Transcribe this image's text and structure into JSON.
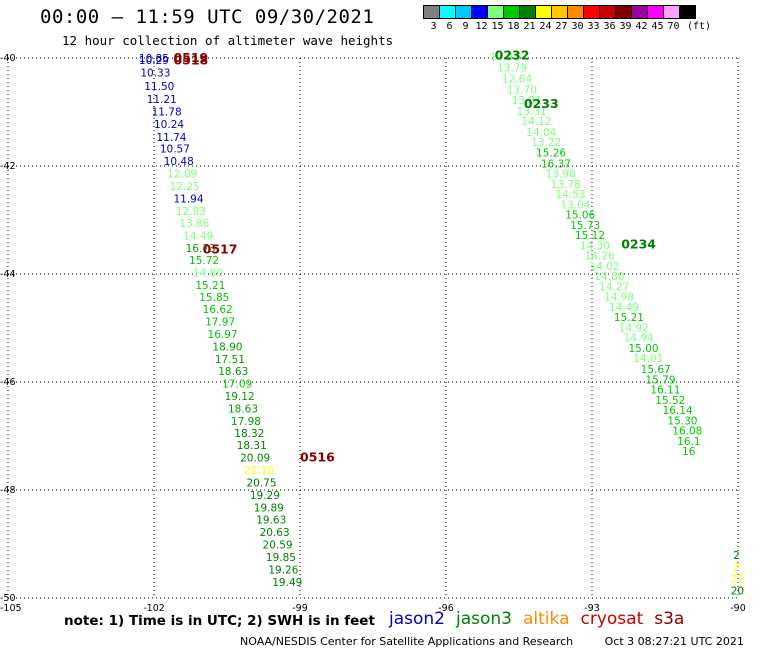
{
  "title": "00:00 – 11:59 UTC 09/30/2021",
  "subtitle": "12 hour collection of altimeter wave heights",
  "legend": {
    "unit": "(ft)",
    "bins": [
      {
        "label": "3",
        "color": "#808080"
      },
      {
        "label": "6",
        "color": "#00ffff"
      },
      {
        "label": "9",
        "color": "#00c8ff"
      },
      {
        "label": "12",
        "color": "#0000ff"
      },
      {
        "label": "15",
        "color": "#7cff7c"
      },
      {
        "label": "18",
        "color": "#00c800"
      },
      {
        "label": "21",
        "color": "#008000"
      },
      {
        "label": "24",
        "color": "#ffff00"
      },
      {
        "label": "27",
        "color": "#ffc800"
      },
      {
        "label": "30",
        "color": "#ff8c00"
      },
      {
        "label": "33",
        "color": "#ff0000"
      },
      {
        "label": "36",
        "color": "#c80000"
      },
      {
        "label": "39",
        "color": "#800000"
      },
      {
        "label": "42",
        "color": "#a000a0"
      },
      {
        "label": "45",
        "color": "#ff00ff"
      },
      {
        "label": "70",
        "color": "#ffa0ff"
      },
      {
        "label": "",
        "color": "#000000"
      }
    ]
  },
  "axes": {
    "lon_ticks": [
      "-105",
      "-102",
      "-99",
      "-96",
      "-93",
      "-90"
    ],
    "lat_ticks": [
      "-40",
      "-42",
      "-44",
      "-46",
      "-48",
      "-50"
    ],
    "lon_range": [
      -105,
      -90
    ],
    "lat_range": [
      -40,
      -50
    ],
    "grid": true
  },
  "passes": [
    {
      "id": "0519",
      "color": "#8b0000",
      "lon": -101.6,
      "lat": -40.0
    },
    {
      "id": "0518",
      "color": "#8b0000",
      "lon": -101.6,
      "lat": -40.05
    },
    {
      "id": "0517",
      "color": "#8b0000",
      "lon": -101.0,
      "lat": -43.55
    },
    {
      "id": "0516",
      "color": "#8b0000",
      "lon": -99.0,
      "lat": -47.4
    },
    {
      "id": "0232",
      "color": "#008000",
      "lon": -95.0,
      "lat": -39.95
    },
    {
      "id": "0233",
      "color": "#008000",
      "lon": -94.4,
      "lat": -40.85
    },
    {
      "id": "0234",
      "color": "#008000",
      "lon": -92.4,
      "lat": -43.45
    }
  ],
  "tracks": [
    {
      "name": "track-west",
      "points": [
        {
          "v": "10.85",
          "lon": -102.31,
          "lat": -40.0,
          "c": "#0000c8"
        },
        {
          "v": "10.29",
          "lon": -102.31,
          "lat": -40.04,
          "c": "#0000c8"
        },
        {
          "v": "10.33",
          "lon": -102.28,
          "lat": -40.27,
          "c": "#0000c8"
        },
        {
          "v": "11.50",
          "lon": -102.2,
          "lat": -40.52,
          "c": "#0000c8"
        },
        {
          "v": "11.21",
          "lon": -102.15,
          "lat": -40.76,
          "c": "#0000c8"
        },
        {
          "v": "11.78",
          "lon": -102.05,
          "lat": -40.99,
          "c": "#0000c8"
        },
        {
          "v": "10.24",
          "lon": -102.0,
          "lat": -41.22,
          "c": "#0000c8"
        },
        {
          "v": "11.74",
          "lon": -101.95,
          "lat": -41.46,
          "c": "#0000c8"
        },
        {
          "v": "10.57",
          "lon": -101.88,
          "lat": -41.68,
          "c": "#0000c8"
        },
        {
          "v": "10.48",
          "lon": -101.8,
          "lat": -41.91,
          "c": "#0000c8"
        },
        {
          "v": "12.09",
          "lon": -101.73,
          "lat": -42.14,
          "c": "#7cff7c"
        },
        {
          "v": "12.25",
          "lon": -101.68,
          "lat": -42.37,
          "c": "#7cff7c"
        },
        {
          "v": "11.94",
          "lon": -101.6,
          "lat": -42.6,
          "c": "#0000c8"
        },
        {
          "v": "12.83",
          "lon": -101.55,
          "lat": -42.83,
          "c": "#7cff7c"
        },
        {
          "v": "13.86",
          "lon": -101.48,
          "lat": -43.06,
          "c": "#7cff7c"
        },
        {
          "v": "14.49",
          "lon": -101.4,
          "lat": -43.29,
          "c": "#7cff7c"
        },
        {
          "v": "16.73",
          "lon": -101.35,
          "lat": -43.52,
          "c": "#00a000"
        },
        {
          "v": "15.72",
          "lon": -101.28,
          "lat": -43.74,
          "c": "#00c800"
        },
        {
          "v": "14.80",
          "lon": -101.2,
          "lat": -43.97,
          "c": "#7cff7c"
        },
        {
          "v": "15.21",
          "lon": -101.15,
          "lat": -44.2,
          "c": "#00c800"
        },
        {
          "v": "15.85",
          "lon": -101.07,
          "lat": -44.43,
          "c": "#00c800"
        },
        {
          "v": "16.62",
          "lon": -101.0,
          "lat": -44.65,
          "c": "#00c800"
        },
        {
          "v": "17.97",
          "lon": -100.95,
          "lat": -44.88,
          "c": "#00c800"
        },
        {
          "v": "16.97",
          "lon": -100.9,
          "lat": -45.11,
          "c": "#00c800"
        },
        {
          "v": "18.90",
          "lon": -100.8,
          "lat": -45.34,
          "c": "#00a000"
        },
        {
          "v": "17.51",
          "lon": -100.75,
          "lat": -45.57,
          "c": "#00a000"
        },
        {
          "v": "18.63",
          "lon": -100.68,
          "lat": -45.8,
          "c": "#00a000"
        },
        {
          "v": "17.09",
          "lon": -100.6,
          "lat": -46.03,
          "c": "#00c800"
        },
        {
          "v": "19.12",
          "lon": -100.55,
          "lat": -46.26,
          "c": "#00a000"
        },
        {
          "v": "18.63",
          "lon": -100.48,
          "lat": -46.49,
          "c": "#00a000"
        },
        {
          "v": "17.98",
          "lon": -100.42,
          "lat": -46.72,
          "c": "#00a000"
        },
        {
          "v": "18.32",
          "lon": -100.35,
          "lat": -46.94,
          "c": "#008000"
        },
        {
          "v": "18.31",
          "lon": -100.3,
          "lat": -47.17,
          "c": "#008000"
        },
        {
          "v": "20.09",
          "lon": -100.23,
          "lat": -47.4,
          "c": "#008000"
        },
        {
          "v": "21.10",
          "lon": -100.15,
          "lat": -47.63,
          "c": "#ffff00"
        },
        {
          "v": "20.75",
          "lon": -100.1,
          "lat": -47.86,
          "c": "#008000"
        },
        {
          "v": "19.29",
          "lon": -100.03,
          "lat": -48.09,
          "c": "#008000"
        },
        {
          "v": "19.89",
          "lon": -99.95,
          "lat": -48.32,
          "c": "#008000"
        },
        {
          "v": "19.63",
          "lon": -99.9,
          "lat": -48.55,
          "c": "#008000"
        },
        {
          "v": "20.63",
          "lon": -99.83,
          "lat": -48.78,
          "c": "#008000"
        },
        {
          "v": "20.59",
          "lon": -99.77,
          "lat": -49.01,
          "c": "#008000"
        },
        {
          "v": "19.85",
          "lon": -99.7,
          "lat": -49.24,
          "c": "#008000"
        },
        {
          "v": "19.26",
          "lon": -99.65,
          "lat": -49.47,
          "c": "#008000"
        },
        {
          "v": "19.49",
          "lon": -99.57,
          "lat": -49.7,
          "c": "#008000"
        }
      ]
    },
    {
      "name": "track-east",
      "points": [
        {
          "v": "13.91",
          "lon": -95.1,
          "lat": -39.97,
          "c": "#7cff7c"
        },
        {
          "v": "13.79",
          "lon": -94.95,
          "lat": -40.18,
          "c": "#7cff7c"
        },
        {
          "v": "12.64",
          "lon": -94.85,
          "lat": -40.38,
          "c": "#7cff7c"
        },
        {
          "v": "13.70",
          "lon": -94.75,
          "lat": -40.58,
          "c": "#7cff7c"
        },
        {
          "v": "13.81",
          "lon": -94.65,
          "lat": -40.78,
          "c": "#7cff7c"
        },
        {
          "v": "13.31",
          "lon": -94.55,
          "lat": -40.98,
          "c": "#7cff7c"
        },
        {
          "v": "14.12",
          "lon": -94.45,
          "lat": -41.17,
          "c": "#7cff7c"
        },
        {
          "v": "14.04",
          "lon": -94.35,
          "lat": -41.37,
          "c": "#7cff7c"
        },
        {
          "v": "13.22",
          "lon": -94.25,
          "lat": -41.56,
          "c": "#7cff7c"
        },
        {
          "v": "15.26",
          "lon": -94.15,
          "lat": -41.75,
          "c": "#00c800"
        },
        {
          "v": "16.37",
          "lon": -94.05,
          "lat": -41.95,
          "c": "#00c800"
        },
        {
          "v": "13.98",
          "lon": -93.95,
          "lat": -42.14,
          "c": "#7cff7c"
        },
        {
          "v": "13.78",
          "lon": -93.85,
          "lat": -42.33,
          "c": "#7cff7c"
        },
        {
          "v": "14.53",
          "lon": -93.75,
          "lat": -42.52,
          "c": "#7cff7c"
        },
        {
          "v": "13.04",
          "lon": -93.65,
          "lat": -42.71,
          "c": "#7cff7c"
        },
        {
          "v": "15.06",
          "lon": -93.55,
          "lat": -42.9,
          "c": "#00c800"
        },
        {
          "v": "15.73",
          "lon": -93.45,
          "lat": -43.09,
          "c": "#00c800"
        },
        {
          "v": "15.12",
          "lon": -93.35,
          "lat": -43.28,
          "c": "#00c800"
        },
        {
          "v": "14.30",
          "lon": -93.25,
          "lat": -43.47,
          "c": "#7cff7c"
        },
        {
          "v": "14.26",
          "lon": -93.15,
          "lat": -43.66,
          "c": "#7cff7c"
        },
        {
          "v": "14.02",
          "lon": -93.05,
          "lat": -43.85,
          "c": "#7cff7c"
        },
        {
          "v": "14.80",
          "lon": -92.95,
          "lat": -44.04,
          "c": "#7cff7c"
        },
        {
          "v": "14.27",
          "lon": -92.85,
          "lat": -44.23,
          "c": "#7cff7c"
        },
        {
          "v": "14.98",
          "lon": -92.75,
          "lat": -44.42,
          "c": "#7cff7c"
        },
        {
          "v": "14.49",
          "lon": -92.65,
          "lat": -44.61,
          "c": "#7cff7c"
        },
        {
          "v": "15.21",
          "lon": -92.55,
          "lat": -44.8,
          "c": "#00c800"
        },
        {
          "v": "14.92",
          "lon": -92.45,
          "lat": -44.99,
          "c": "#7cff7c"
        },
        {
          "v": "14.94",
          "lon": -92.35,
          "lat": -45.18,
          "c": "#7cff7c"
        },
        {
          "v": "15.00",
          "lon": -92.25,
          "lat": -45.37,
          "c": "#00c800"
        },
        {
          "v": "14.01",
          "lon": -92.15,
          "lat": -45.56,
          "c": "#7cff7c"
        },
        {
          "v": "15.67",
          "lon": -92.0,
          "lat": -45.76,
          "c": "#00c800"
        },
        {
          "v": "15.79",
          "lon": -91.9,
          "lat": -45.95,
          "c": "#00c800"
        },
        {
          "v": "16.11",
          "lon": -91.8,
          "lat": -46.14,
          "c": "#00c800"
        },
        {
          "v": "15.52",
          "lon": -91.7,
          "lat": -46.33,
          "c": "#00c800"
        },
        {
          "v": "16.14",
          "lon": -91.55,
          "lat": -46.52,
          "c": "#00c800"
        },
        {
          "v": "15.30",
          "lon": -91.45,
          "lat": -46.71,
          "c": "#00c800"
        },
        {
          "v": "16.08",
          "lon": -91.35,
          "lat": -46.9,
          "c": "#00c800"
        },
        {
          "v": "16.1",
          "lon": -91.25,
          "lat": -47.09,
          "c": "#00c800"
        },
        {
          "v": "16",
          "lon": -91.15,
          "lat": -47.28,
          "c": "#00c800"
        }
      ]
    },
    {
      "name": "track-edge",
      "points": [
        {
          "v": "2",
          "lon": -90.1,
          "lat": -49.2,
          "c": "#008000"
        },
        {
          "v": "2",
          "lon": -90.1,
          "lat": -49.42,
          "c": "#ffff00"
        },
        {
          "v": "22",
          "lon": -90.15,
          "lat": -49.64,
          "c": "#ffff00"
        },
        {
          "v": "20",
          "lon": -90.15,
          "lat": -49.86,
          "c": "#008000"
        }
      ]
    }
  ],
  "notes": "note: 1) Time is in UTC; 2) SWH is in feet",
  "satellites": [
    {
      "name": "jason2",
      "color": "#0000c8"
    },
    {
      "name": "jason3",
      "color": "#008000"
    },
    {
      "name": "altika",
      "color": "#ff8c00"
    },
    {
      "name": "cryosat",
      "color": "#c80000"
    },
    {
      "name": "s3a",
      "color": "#800000"
    }
  ],
  "footer": {
    "org": "NOAA/NESDIS Center for Satellite Applications and Research",
    "timestamp": "Oct  3 08:27:21 UTC 2021"
  }
}
